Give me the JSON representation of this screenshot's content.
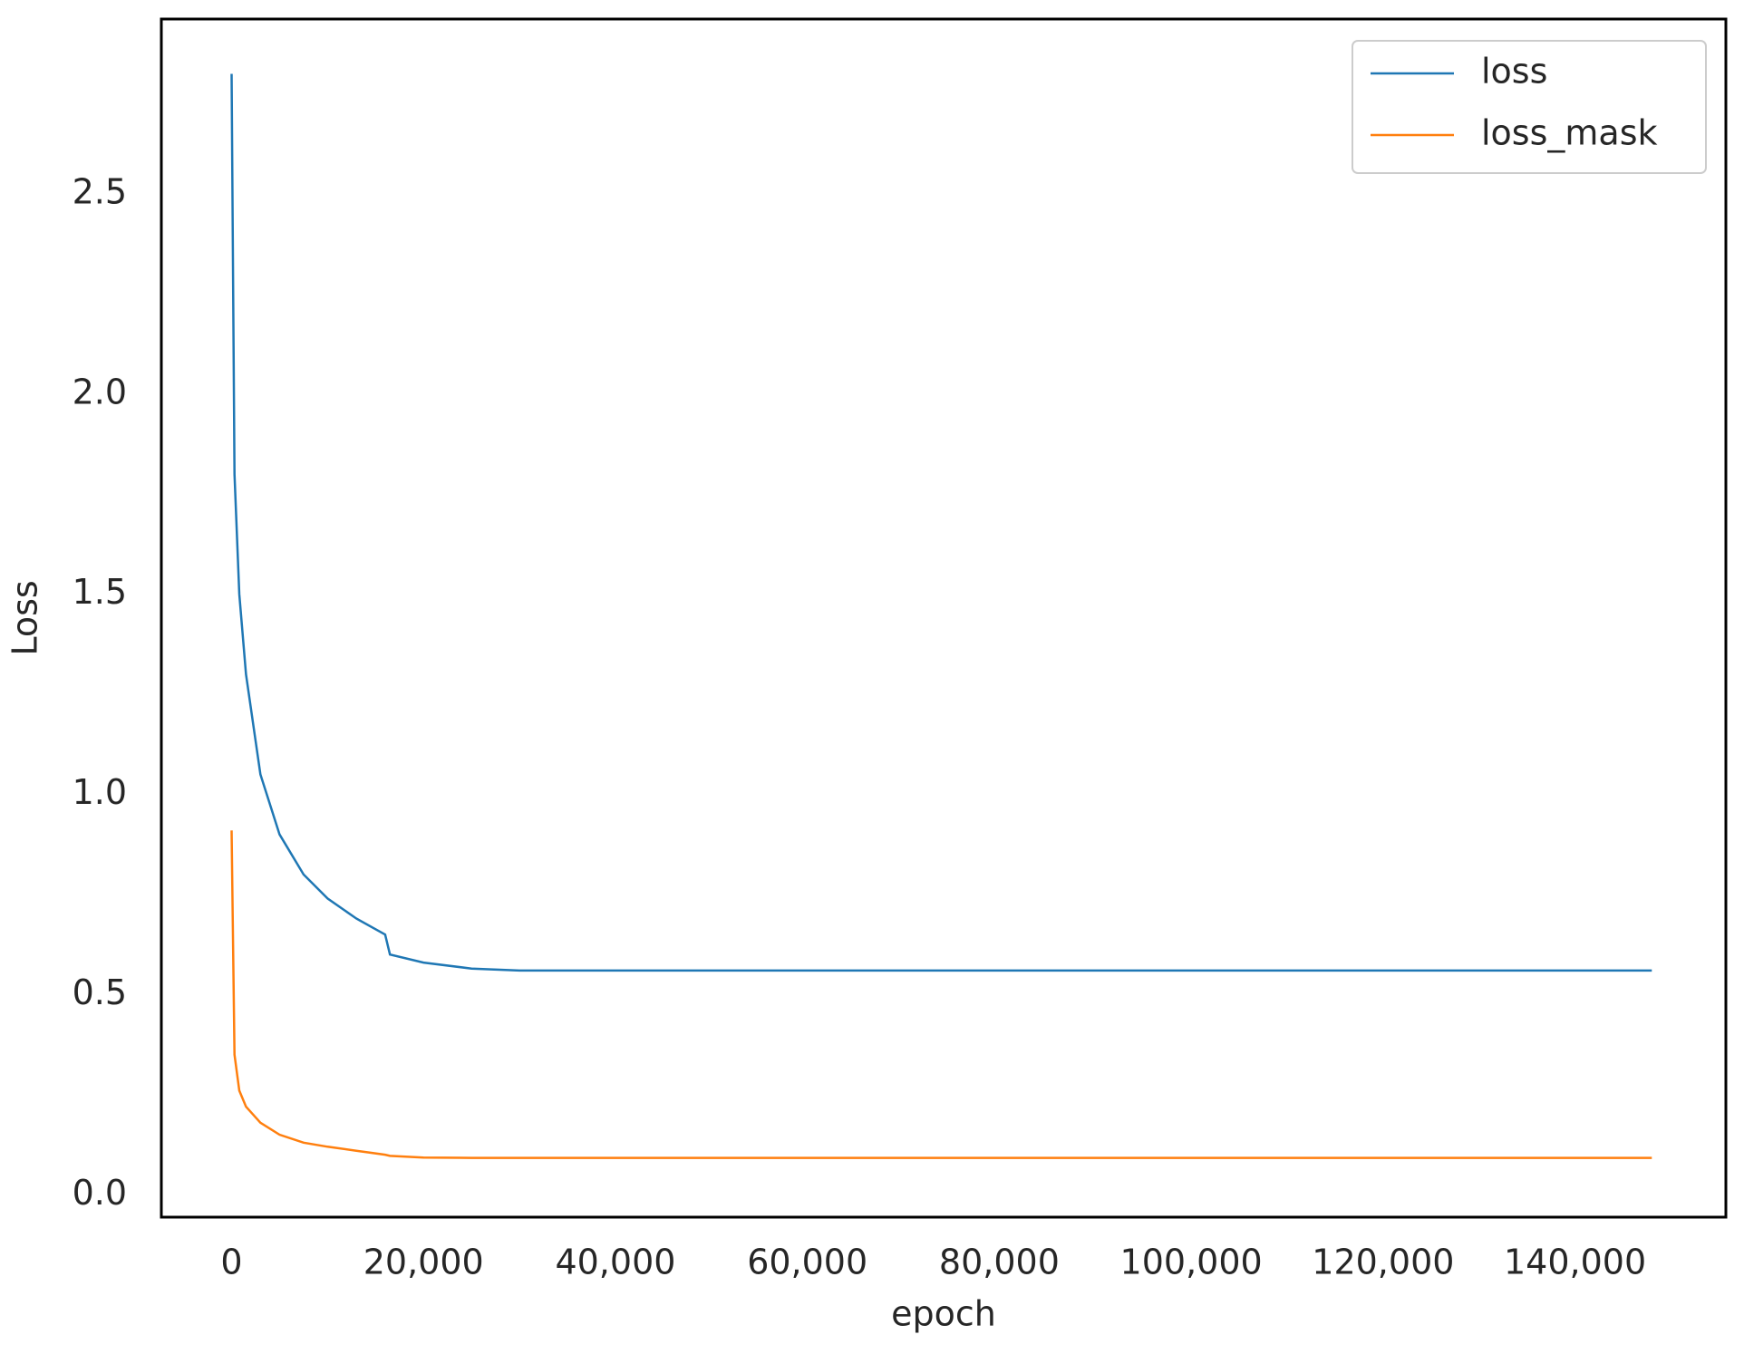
{
  "chart_data": {
    "type": "line",
    "x_label": "epoch",
    "y_label": "Loss",
    "x": [
      0,
      300,
      800,
      1500,
      3000,
      5000,
      7500,
      10000,
      13000,
      16000,
      16500,
      20000,
      25000,
      30000,
      40000,
      60000,
      80000,
      100000,
      120000,
      148000
    ],
    "series": [
      {
        "name": "loss",
        "color": "#1f77b4",
        "values": [
          2.8,
          1.8,
          1.5,
          1.3,
          1.05,
          0.9,
          0.8,
          0.74,
          0.69,
          0.65,
          0.6,
          0.58,
          0.565,
          0.56,
          0.56,
          0.56,
          0.56,
          0.56,
          0.56,
          0.56
        ]
      },
      {
        "name": "loss_mask",
        "color": "#ff7f0e",
        "values": [
          0.91,
          0.35,
          0.26,
          0.22,
          0.18,
          0.15,
          0.13,
          0.12,
          0.11,
          0.1,
          0.097,
          0.093,
          0.092,
          0.092,
          0.092,
          0.092,
          0.092,
          0.092,
          0.092,
          0.092
        ]
      }
    ],
    "xlim": [
      -7320,
      155720
    ],
    "ylim": [
      -0.056,
      2.937
    ],
    "xticks": [
      0,
      {
        "value": 20000,
        "label": "20,000"
      },
      {
        "value": 40000,
        "label": "40,000"
      },
      {
        "value": 60000,
        "label": "60,000"
      },
      {
        "value": 80000,
        "label": "80,000"
      },
      {
        "value": 100000,
        "label": "100,000"
      },
      {
        "value": 120000,
        "label": "120,000"
      },
      {
        "value": 140000,
        "label": "140,000"
      }
    ],
    "yticks": [
      {
        "value": 0,
        "label": "0.0"
      },
      0.5,
      {
        "value": 1,
        "label": "1.0"
      },
      1.5,
      {
        "value": 2,
        "label": "2.0"
      },
      2.5
    ],
    "legend": "upper right",
    "grid": false
  }
}
